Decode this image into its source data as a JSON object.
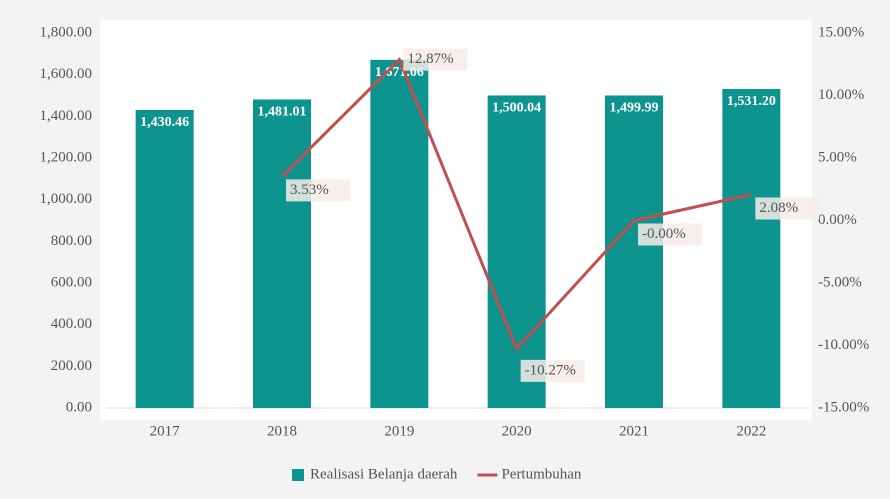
{
  "chart_data": {
    "type": "bar",
    "categories": [
      "2017",
      "2018",
      "2019",
      "2020",
      "2021",
      "2022"
    ],
    "series": [
      {
        "name": "Realisasi Belanja daerah",
        "type": "bar",
        "color": "#0e948f",
        "values": [
          1430.46,
          1481.01,
          1671.06,
          1500.04,
          1499.99,
          1531.2
        ],
        "value_labels": [
          "1,430.46",
          "1,481.01",
          "1,671.06",
          "1,500.04",
          "1,499.99",
          "1,531.20"
        ]
      },
      {
        "name": "Pertumbuhan",
        "type": "line",
        "axis": "y2",
        "color": "#c0504d",
        "values": [
          null,
          3.53,
          12.87,
          -10.27,
          0,
          2.08
        ],
        "value_labels": [
          null,
          "3.53%",
          "12.87%",
          "-10.27%",
          "-0.00%",
          "2.08%"
        ]
      }
    ],
    "ylim": [
      0,
      1800
    ],
    "yticks": [
      {
        "value": 0,
        "label": "0.00"
      },
      {
        "value": 200,
        "label": "200.00"
      },
      {
        "value": 400,
        "label": "400.00"
      },
      {
        "value": 600,
        "label": "600.00"
      },
      {
        "value": 800,
        "label": "800.00"
      },
      {
        "value": 1000,
        "label": "1,000.00"
      },
      {
        "value": 1200,
        "label": "1,200.00"
      },
      {
        "value": 1400,
        "label": "1,400.00"
      },
      {
        "value": 1600,
        "label": "1,600.00"
      },
      {
        "value": 1800,
        "label": "1,800.00"
      }
    ],
    "y2lim": [
      -15,
      15
    ],
    "y2ticks": [
      {
        "value": -15,
        "label": "-15.00%"
      },
      {
        "value": -10,
        "label": "-10.00%"
      },
      {
        "value": -5,
        "label": "-5.00%"
      },
      {
        "value": 0,
        "label": "0.00%"
      },
      {
        "value": 5,
        "label": "5.00%"
      },
      {
        "value": 10,
        "label": "10.00%"
      },
      {
        "value": 15,
        "label": "15.00%"
      }
    ],
    "legend": "bottom"
  }
}
